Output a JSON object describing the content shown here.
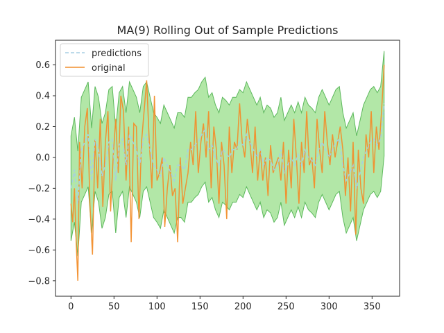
{
  "chart_data": {
    "type": "line",
    "title": "MA(9) Rolling Out of Sample Predictions",
    "xlabel": "",
    "ylabel": "",
    "xlim": [
      -18,
      382
    ],
    "ylim": [
      -0.9,
      0.76
    ],
    "xticks": [
      0,
      50,
      100,
      150,
      200,
      250,
      300,
      350
    ],
    "yticks": [
      -0.8,
      -0.6,
      -0.4,
      -0.2,
      0.0,
      0.2,
      0.4,
      0.6
    ],
    "ytick_labels": [
      "−0.8",
      "−0.6",
      "−0.4",
      "−0.2",
      "0.0",
      "0.2",
      "0.4",
      "0.6"
    ],
    "grid": false,
    "legend": "top-left",
    "band_halfwidth": 0.34,
    "colors": {
      "predictions": "#a6cee3",
      "original": "#f28e2b",
      "band_fill": "#98df8a",
      "band_edge": "#5cb85c"
    },
    "series": [
      {
        "name": "predictions",
        "style": "dashed",
        "x": [
          0,
          4,
          8,
          12,
          16,
          20,
          24,
          28,
          32,
          36,
          40,
          44,
          48,
          52,
          56,
          60,
          64,
          68,
          72,
          76,
          80,
          84,
          88,
          92,
          96,
          100,
          104,
          108,
          112,
          116,
          120,
          124,
          128,
          132,
          136,
          140,
          144,
          148,
          152,
          156,
          160,
          164,
          168,
          172,
          176,
          180,
          184,
          188,
          192,
          196,
          200,
          204,
          208,
          212,
          216,
          220,
          224,
          228,
          232,
          236,
          240,
          244,
          248,
          252,
          256,
          260,
          264,
          268,
          272,
          276,
          280,
          284,
          288,
          292,
          296,
          300,
          304,
          308,
          312,
          316,
          320,
          324,
          328,
          332,
          336,
          340,
          344,
          348,
          352,
          356,
          360,
          364
        ],
        "values": [
          -0.2,
          -0.08,
          -0.3,
          0.05,
          0.1,
          0.15,
          -0.15,
          0.12,
          0.05,
          -0.12,
          -0.05,
          0.1,
          0.12,
          -0.15,
          0.08,
          0.12,
          -0.05,
          0.15,
          0.1,
          0.05,
          -0.05,
          0.12,
          0.15,
          0.05,
          -0.05,
          -0.08,
          -0.12,
          0.0,
          -0.05,
          -0.1,
          -0.15,
          -0.05,
          -0.05,
          -0.08,
          0.05,
          0.05,
          0.08,
          0.1,
          0.15,
          0.18,
          0.05,
          0.08,
          0.0,
          -0.05,
          0.05,
          0.03,
          0.0,
          0.05,
          0.05,
          0.1,
          0.08,
          0.15,
          0.1,
          0.05,
          0.0,
          0.05,
          -0.05,
          0.0,
          -0.02,
          -0.08,
          -0.05,
          0.05,
          -0.1,
          -0.05,
          0.0,
          -0.05,
          0.02,
          -0.05,
          0.05,
          0.0,
          -0.02,
          -0.05,
          0.05,
          0.1,
          0.05,
          0.0,
          0.05,
          0.1,
          0.12,
          -0.05,
          -0.15,
          -0.1,
          -0.05,
          -0.2,
          -0.1,
          0.0,
          0.05,
          0.1,
          0.12,
          0.08,
          0.12,
          0.35
        ]
      },
      {
        "name": "original",
        "style": "solid",
        "x": [
          0,
          2,
          4,
          6,
          8,
          10,
          13,
          16,
          19,
          22,
          25,
          28,
          31,
          34,
          37,
          40,
          43,
          46,
          49,
          52,
          55,
          58,
          61,
          64,
          67,
          70,
          73,
          76,
          79,
          82,
          85,
          88,
          91,
          94,
          97,
          100,
          103,
          106,
          109,
          112,
          115,
          118,
          121,
          124,
          127,
          130,
          133,
          136,
          139,
          142,
          145,
          148,
          151,
          154,
          157,
          160,
          163,
          166,
          169,
          172,
          175,
          178,
          181,
          184,
          187,
          190,
          193,
          196,
          199,
          202,
          205,
          208,
          211,
          214,
          217,
          220,
          223,
          226,
          229,
          232,
          235,
          238,
          241,
          244,
          247,
          250,
          253,
          256,
          259,
          262,
          265,
          268,
          271,
          274,
          277,
          280,
          283,
          286,
          289,
          292,
          295,
          298,
          301,
          304,
          307,
          310,
          313,
          316,
          319,
          322,
          325,
          328,
          331,
          334,
          337,
          340,
          343,
          346,
          349,
          352,
          355,
          358,
          361,
          364
        ],
        "values": [
          -0.3,
          -0.42,
          -0.2,
          -0.55,
          -0.8,
          0.1,
          -0.2,
          0.2,
          0.32,
          -0.3,
          -0.63,
          0.12,
          -0.2,
          0.25,
          -0.32,
          0.1,
          0.3,
          -0.35,
          0.0,
          0.25,
          -0.1,
          0.4,
          0.3,
          -0.15,
          0.2,
          -0.55,
          0.22,
          0.2,
          -0.4,
          0.1,
          0.3,
          0.5,
          0.1,
          -0.2,
          0.4,
          -0.15,
          -0.1,
          0.0,
          -0.45,
          -0.2,
          -0.05,
          -0.25,
          -0.2,
          -0.55,
          0.0,
          -0.3,
          -0.2,
          -0.1,
          0.1,
          -0.05,
          0.3,
          -0.1,
          0.1,
          0.22,
          0.0,
          0.3,
          -0.2,
          0.2,
          0.05,
          -0.3,
          0.1,
          -0.05,
          -0.4,
          0.2,
          -0.1,
          0.1,
          0.05,
          0.35,
          0.1,
          0.0,
          0.25,
          0.1,
          -0.1,
          0.2,
          -0.15,
          0.05,
          -0.15,
          0.0,
          -0.25,
          0.08,
          -0.1,
          -0.05,
          0.0,
          -0.15,
          0.1,
          -0.3,
          0.05,
          -0.2,
          0.25,
          0.0,
          -0.3,
          0.1,
          -0.1,
          0.3,
          -0.05,
          0.0,
          -0.2,
          0.25,
          0.05,
          -0.1,
          0.3,
          0.1,
          -0.05,
          0.15,
          0.0,
          0.1,
          0.2,
          0.05,
          -0.25,
          0.0,
          -0.35,
          0.1,
          -0.5,
          0.05,
          -0.2,
          -0.3,
          0.15,
          0.0,
          0.3,
          -0.1,
          0.2,
          0.05,
          0.3,
          0.6
        ]
      }
    ]
  }
}
